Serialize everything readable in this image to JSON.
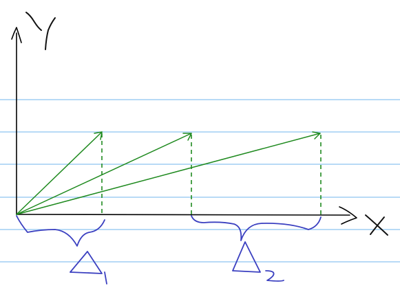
{
  "axes": {
    "y_label_icon": "handwritten-y-letter",
    "x_label_icon": "handwritten-x-letter"
  },
  "vectors": [
    {
      "name": "vector-1"
    },
    {
      "name": "vector-2"
    },
    {
      "name": "vector-3"
    }
  ],
  "braces": [
    {
      "name": "delta-1",
      "glyph_icon": "handwritten-delta-1"
    },
    {
      "name": "delta-2",
      "glyph_icon": "handwritten-delta-2"
    }
  ],
  "colors": {
    "ruled_lines": "#8cc4f0",
    "axes_ink": "#000000",
    "vectors": "#1f8a1f",
    "braces_ink": "#3a3fc0"
  }
}
